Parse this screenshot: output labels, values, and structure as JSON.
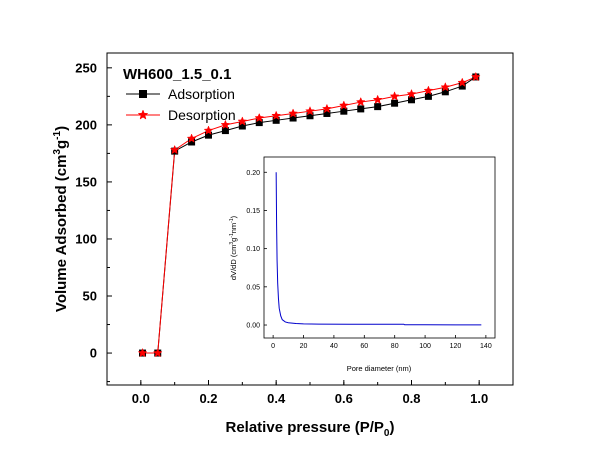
{
  "chart_data": [
    {
      "type": "line",
      "title": "WH600_1.5_0.1",
      "xlabel": "Relative pressure (P/P",
      "xlabel_sub": "0",
      "xlabel_end": ")",
      "ylabel": "Volume Adsorbed (cm",
      "ylabel_sup1": "3",
      "ylabel_mid": "g",
      "ylabel_sup2": "-1",
      "ylabel_end": ")",
      "xlim": [
        -0.1,
        1.1
      ],
      "ylim": [
        -28,
        263
      ],
      "xticks": [
        "0.0",
        "0.2",
        "0.4",
        "0.6",
        "0.8",
        "1.0"
      ],
      "xtick_values": [
        0.0,
        0.2,
        0.4,
        0.6,
        0.8,
        1.0
      ],
      "yticks": [
        "0",
        "50",
        "100",
        "150",
        "200",
        "250"
      ],
      "ytick_values": [
        0,
        50,
        100,
        150,
        200,
        250
      ],
      "legend_position": "top-left",
      "series": [
        {
          "name": "Adsorption",
          "color": "#000000",
          "marker": "square",
          "x": [
            0.005,
            0.05,
            0.1,
            0.15,
            0.2,
            0.25,
            0.3,
            0.35,
            0.4,
            0.45,
            0.5,
            0.55,
            0.6,
            0.65,
            0.7,
            0.75,
            0.8,
            0.85,
            0.9,
            0.95,
            0.99
          ],
          "y": [
            0,
            0,
            177,
            185,
            191,
            195,
            199,
            202,
            204,
            206,
            208,
            210,
            212,
            214,
            216,
            219,
            222,
            225,
            229,
            234,
            242
          ]
        },
        {
          "name": "Desorption",
          "color": "#ff0000",
          "marker": "star",
          "x": [
            0.005,
            0.05,
            0.1,
            0.15,
            0.2,
            0.25,
            0.3,
            0.35,
            0.4,
            0.45,
            0.5,
            0.55,
            0.6,
            0.65,
            0.7,
            0.75,
            0.8,
            0.85,
            0.9,
            0.95,
            0.99
          ],
          "y": [
            0,
            0,
            178,
            188,
            195,
            200,
            203,
            206,
            208,
            210,
            212,
            214,
            217,
            220,
            222,
            225,
            227,
            230,
            233,
            237,
            242
          ]
        }
      ]
    },
    {
      "type": "line",
      "xlabel": "Pore diameter (nm)",
      "ylabel": "dV/dD (cm",
      "ylabel_sup1": "3",
      "ylabel_mid": "g",
      "ylabel_sup2": "-1",
      "ylabel_mid2": "nm",
      "ylabel_sup3": "-1",
      "ylabel_end": ")",
      "xlim": [
        -6,
        146
      ],
      "ylim": [
        -0.017,
        0.22
      ],
      "xticks": [
        "0",
        "20",
        "40",
        "60",
        "80",
        "100",
        "120",
        "140"
      ],
      "xtick_values": [
        0,
        20,
        40,
        60,
        80,
        100,
        120,
        140
      ],
      "yticks": [
        "0.00",
        "0.05",
        "0.10",
        "0.15",
        "0.20"
      ],
      "ytick_values": [
        0,
        0.05,
        0.1,
        0.15,
        0.2
      ],
      "series": [
        {
          "color": "#0000cc",
          "x": [
            2,
            2.3,
            2.6,
            3,
            3.5,
            4,
            5,
            6,
            8,
            10,
            15,
            20,
            30,
            50,
            70,
            86,
            86.5,
            100,
            120,
            137
          ],
          "y": [
            0.2,
            0.13,
            0.085,
            0.055,
            0.035,
            0.022,
            0.012,
            0.007,
            0.004,
            0.003,
            0.002,
            0.0015,
            0.0012,
            0.001,
            0.001,
            0.001,
            0.0003,
            0.0003,
            0.0002,
            0.0002
          ]
        }
      ]
    }
  ]
}
